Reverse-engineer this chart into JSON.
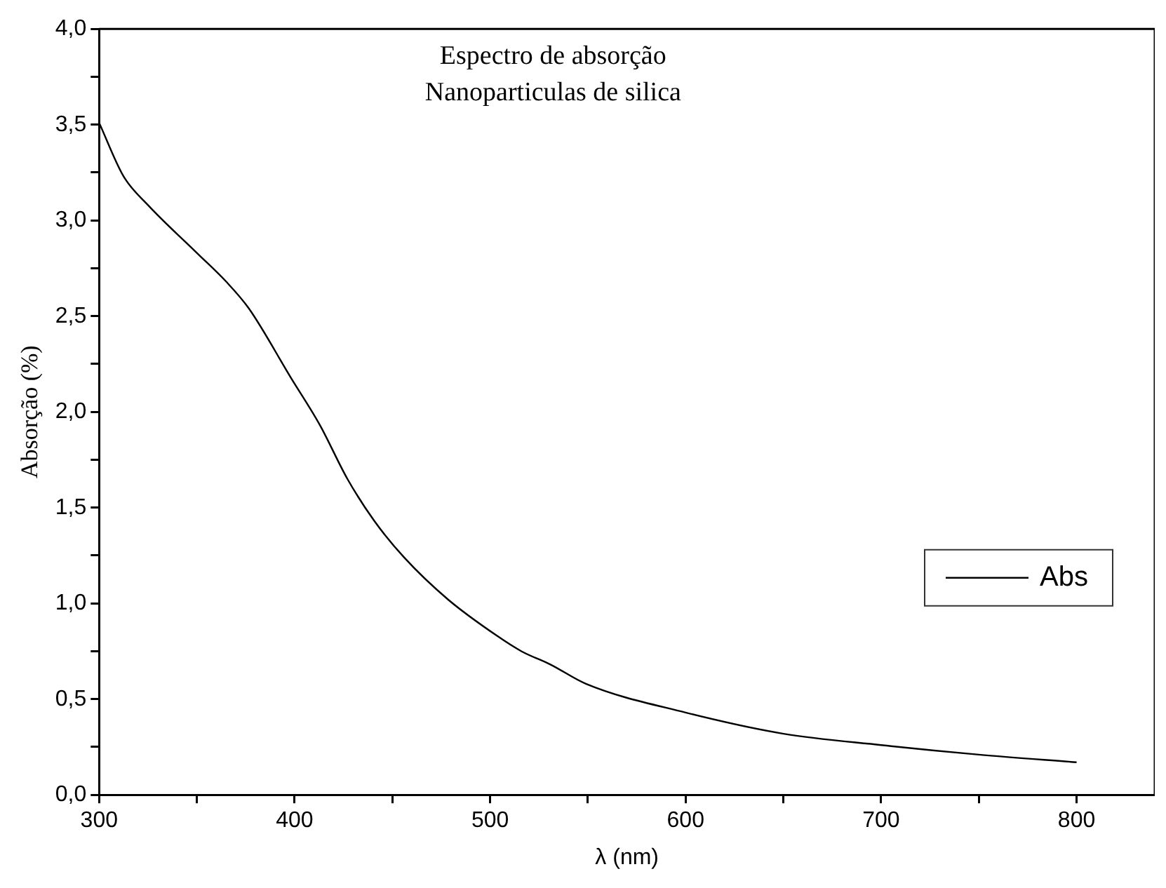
{
  "chart_data": {
    "type": "line",
    "title": "Espectro de absorção",
    "subtitle": "Nanoparticulas de silica",
    "xlabel": "λ (nm)",
    "ylabel": "Absorção (%)",
    "x": [
      300,
      312.5,
      325,
      350,
      365,
      376.6,
      398,
      413,
      427,
      440.8,
      456,
      478.5,
      503.6,
      516,
      531,
      549,
      600,
      649.6,
      700,
      750,
      800
    ],
    "series": [
      {
        "name": "Abs",
        "color": "#000000",
        "values": [
          3.51,
          3.23,
          3.08,
          2.83,
          2.68,
          2.54,
          2.18,
          1.93,
          1.65,
          1.43,
          1.24,
          1.02,
          0.83,
          0.75,
          0.68,
          0.58,
          0.43,
          0.32,
          0.26,
          0.21,
          0.17
        ]
      }
    ],
    "xlim": [
      300,
      840
    ],
    "xticks": [
      300,
      {
        "value": 350,
        "label": null
      },
      400,
      {
        "value": 450,
        "label": null
      },
      500,
      {
        "value": 550,
        "label": null
      },
      600,
      {
        "value": 650,
        "label": null
      },
      700,
      {
        "value": 750,
        "label": null
      },
      800
    ],
    "ylim": [
      0,
      4
    ],
    "yticks": [
      {
        "value": 0,
        "label": "0,0"
      },
      {
        "value": 0.25,
        "label": null
      },
      {
        "value": 0.5,
        "label": "0,5"
      },
      {
        "value": 0.75,
        "label": null
      },
      {
        "value": 1,
        "label": "1,0"
      },
      {
        "value": 1.25,
        "label": null
      },
      {
        "value": 1.5,
        "label": "1,5"
      },
      {
        "value": 1.75,
        "label": null
      },
      {
        "value": 2,
        "label": "2,0"
      },
      {
        "value": 2.25,
        "label": null
      },
      {
        "value": 2.5,
        "label": "2,5"
      },
      {
        "value": 2.75,
        "label": null
      },
      {
        "value": 3,
        "label": "3,0"
      },
      {
        "value": 3.25,
        "label": null
      },
      {
        "value": 3.5,
        "label": "3,5"
      },
      {
        "value": 3.75,
        "label": null
      },
      {
        "value": 4,
        "label": "4,0"
      }
    ],
    "grid": false,
    "legend": "right",
    "marker": "none",
    "line_style": "solid"
  }
}
